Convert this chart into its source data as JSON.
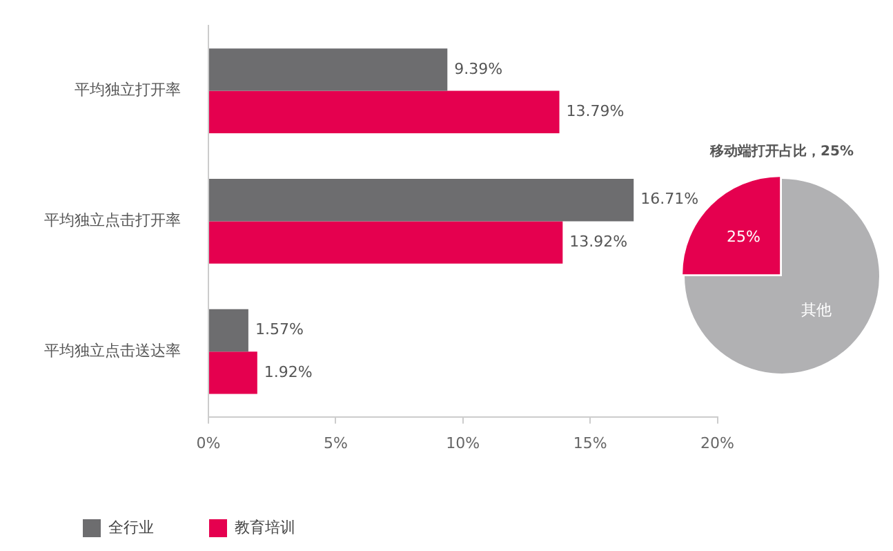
{
  "chart_data": [
    {
      "type": "bar",
      "orientation": "horizontal",
      "categories": [
        "平均独立打开率",
        "平均独立点击打开率",
        "平均独立点击送达率"
      ],
      "series": [
        {
          "name": "全行业",
          "color": "#6d6d6f",
          "values": [
            9.39,
            16.71,
            1.57
          ],
          "value_labels": [
            "9.39%",
            "16.71%",
            "1.57%"
          ]
        },
        {
          "name": "教育培训",
          "color": "#e5004f",
          "values": [
            13.79,
            13.92,
            1.92
          ],
          "value_labels": [
            "13.79%",
            "13.92%",
            "1.92%"
          ]
        }
      ],
      "xlim": [
        0,
        20
      ],
      "xticks": [
        {
          "value": 0,
          "label": "0%"
        },
        {
          "value": 5,
          "label": "5%"
        },
        {
          "value": 10,
          "label": "10%"
        },
        {
          "value": 15,
          "label": "15%"
        },
        {
          "value": 20,
          "label": "20%"
        }
      ],
      "grid": false,
      "legend": "bottom left"
    },
    {
      "type": "pie",
      "title": "移动端打开占比，25%",
      "categories": [
        null,
        "其他"
      ],
      "values": [
        25,
        75
      ],
      "colors": [
        "#e5004f",
        "#b1b1b3"
      ],
      "value_labels": [
        "25%",
        null
      ]
    }
  ]
}
